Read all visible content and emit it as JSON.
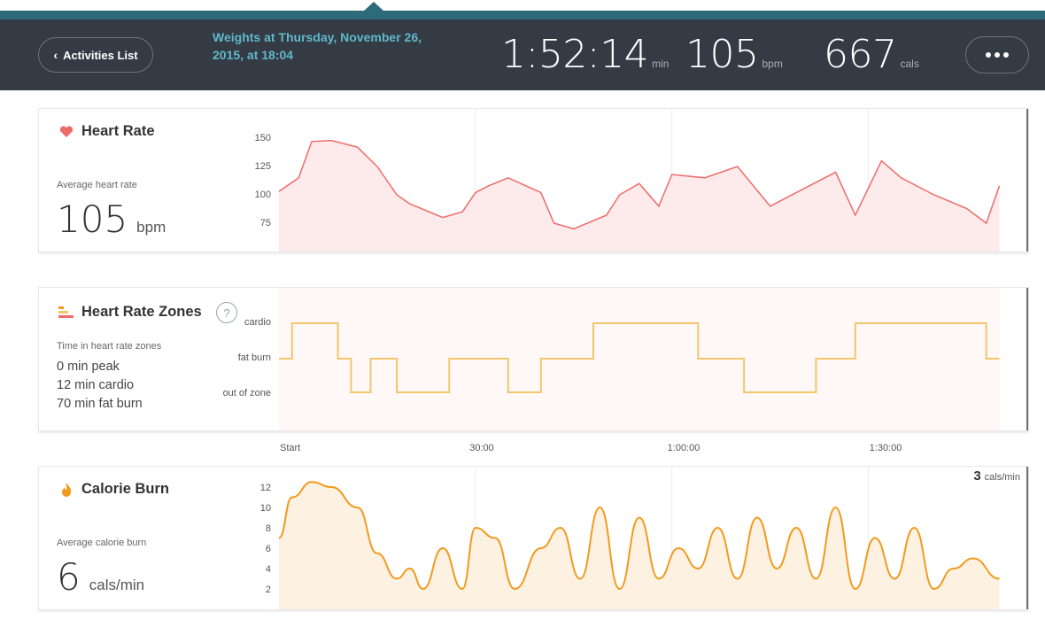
{
  "header": {
    "back_label": "Activities List",
    "activity_title": "Weights at Thursday, November 26, 2015, at 18:04",
    "duration": "1:52:14",
    "duration_unit": "min",
    "avg_hr": "105",
    "avg_hr_unit": "bpm",
    "calories": "667",
    "calories_unit": "cals"
  },
  "heart_rate": {
    "title": "Heart Rate",
    "avg_label": "Average heart rate",
    "avg_value": "105",
    "avg_unit": "bpm",
    "yticks": [
      "150",
      "125",
      "100",
      "75"
    ],
    "color": "#ef6b6b"
  },
  "zones": {
    "title": "Heart Rate Zones",
    "help_label": "?",
    "time_label": "Time in heart rate zones",
    "peak": "0 min peak",
    "cardio": "12 min cardio",
    "fat_burn": "70 min fat burn",
    "levels": [
      "cardio",
      "fat burn",
      "out of zone"
    ],
    "color": "#f2c66d"
  },
  "x_axis": [
    "Start",
    "30:00",
    "1:00:00",
    "1:30:00"
  ],
  "calorie_burn": {
    "title": "Calorie Burn",
    "avg_label": "Average calorie burn",
    "avg_value": "6",
    "avg_unit": "cals/min",
    "current_value": "3",
    "current_unit": "cals/min",
    "yticks": [
      "12",
      "10",
      "8",
      "6",
      "4",
      "2"
    ],
    "color": "#f29a1e"
  },
  "chart_data": [
    {
      "type": "line",
      "title": "Heart Rate",
      "ylabel": "bpm",
      "ylim": [
        60,
        165
      ],
      "x": [
        0,
        3,
        5,
        8,
        12,
        15,
        18,
        20,
        25,
        28,
        30,
        32,
        35,
        40,
        42,
        45,
        50,
        52,
        55,
        58,
        60,
        65,
        70,
        75,
        80,
        85,
        88,
        92,
        95,
        100,
        105,
        108,
        110
      ],
      "series": [
        {
          "name": "",
          "values": [
            103,
            115,
            147,
            148,
            142,
            125,
            100,
            92,
            80,
            85,
            102,
            108,
            115,
            102,
            75,
            70,
            82,
            100,
            110,
            90,
            118,
            115,
            125,
            90,
            105,
            120,
            82,
            130,
            115,
            100,
            88,
            75,
            108
          ]
        }
      ]
    },
    {
      "type": "line",
      "title": "Heart Rate Zones",
      "categories": [
        "out of zone",
        "fat burn",
        "cardio"
      ],
      "x": [
        0,
        2,
        2,
        9,
        9,
        11,
        11,
        14,
        14,
        18,
        18,
        26,
        26,
        35,
        35,
        40,
        40,
        48,
        48,
        64,
        64,
        71,
        71,
        82,
        82,
        88,
        88,
        108,
        108,
        110
      ],
      "series": [
        {
          "name": "",
          "values": [
            1,
            1,
            2,
            2,
            1,
            1,
            0,
            0,
            1,
            1,
            0,
            0,
            1,
            1,
            0,
            0,
            1,
            1,
            2,
            2,
            1,
            1,
            0,
            0,
            1,
            1,
            2,
            2,
            1,
            1
          ]
        }
      ]
    },
    {
      "type": "area",
      "title": "Calorie Burn",
      "ylabel": "cals/min",
      "ylim": [
        1,
        13
      ],
      "x": [
        0,
        2,
        5,
        8,
        12,
        15,
        18,
        20,
        22,
        25,
        28,
        30,
        33,
        36,
        40,
        43,
        46,
        49,
        52,
        55,
        58,
        61,
        64,
        67,
        70,
        73,
        76,
        79,
        82,
        85,
        88,
        91,
        94,
        97,
        100,
        103,
        106,
        110
      ],
      "series": [
        {
          "name": "",
          "values": [
            7,
            11,
            12.5,
            12,
            10,
            5.5,
            3,
            4,
            2,
            6,
            2,
            8,
            7,
            2,
            6,
            8,
            3,
            10,
            2,
            9,
            3,
            6,
            4,
            8,
            3,
            9,
            4,
            8,
            3,
            10,
            2,
            7,
            3,
            8,
            2,
            4,
            5,
            3
          ]
        }
      ]
    }
  ]
}
